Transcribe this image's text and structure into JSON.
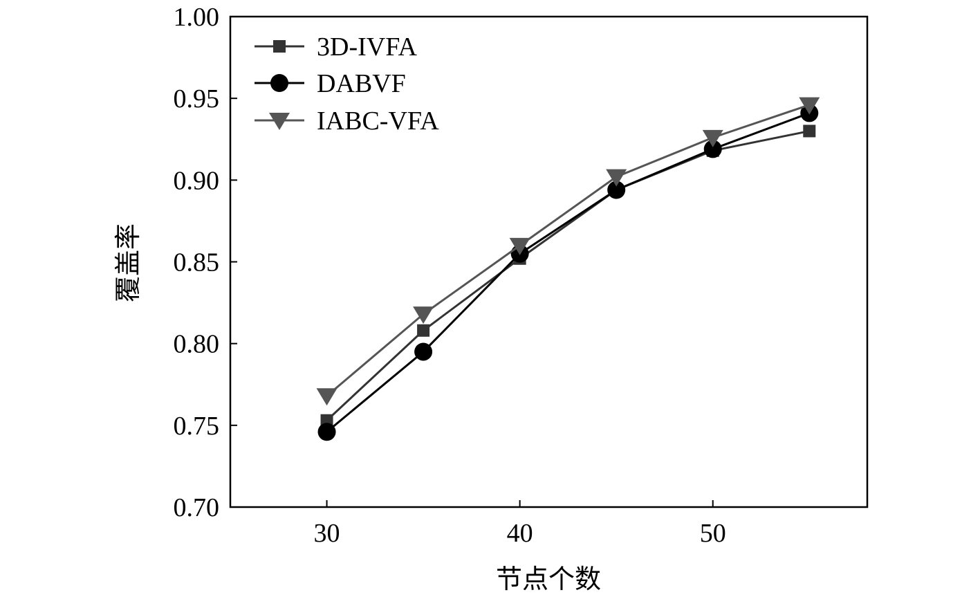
{
  "chart_data": {
    "type": "line",
    "title": "",
    "xlabel": "节点个数",
    "ylabel": "覆盖率",
    "xlim": [
      25,
      58
    ],
    "ylim": [
      0.7,
      1.0
    ],
    "x_ticks": [
      30,
      40,
      50
    ],
    "x_tick_labels": [
      "30",
      "40",
      "50"
    ],
    "y_ticks": [
      0.7,
      0.75,
      0.8,
      0.85,
      0.9,
      0.95,
      1.0
    ],
    "y_tick_labels": [
      "0.70",
      "0.75",
      "0.80",
      "0.85",
      "0.90",
      "0.95",
      "1.00"
    ],
    "grid": false,
    "legend_position": "top-left",
    "x": [
      30,
      35,
      40,
      45,
      50,
      55
    ],
    "series": [
      {
        "name": "3D-IVFA",
        "marker": "square",
        "color": "#333333",
        "values": [
          0.753,
          0.808,
          0.852,
          0.894,
          0.918,
          0.93
        ]
      },
      {
        "name": "DABVF",
        "marker": "circle",
        "color": "#000000",
        "values": [
          0.746,
          0.795,
          0.855,
          0.894,
          0.919,
          0.941
        ]
      },
      {
        "name": "IABC-VFA",
        "marker": "triangle-down",
        "color": "#555555",
        "values": [
          0.768,
          0.818,
          0.86,
          0.902,
          0.926,
          0.946
        ]
      }
    ]
  }
}
